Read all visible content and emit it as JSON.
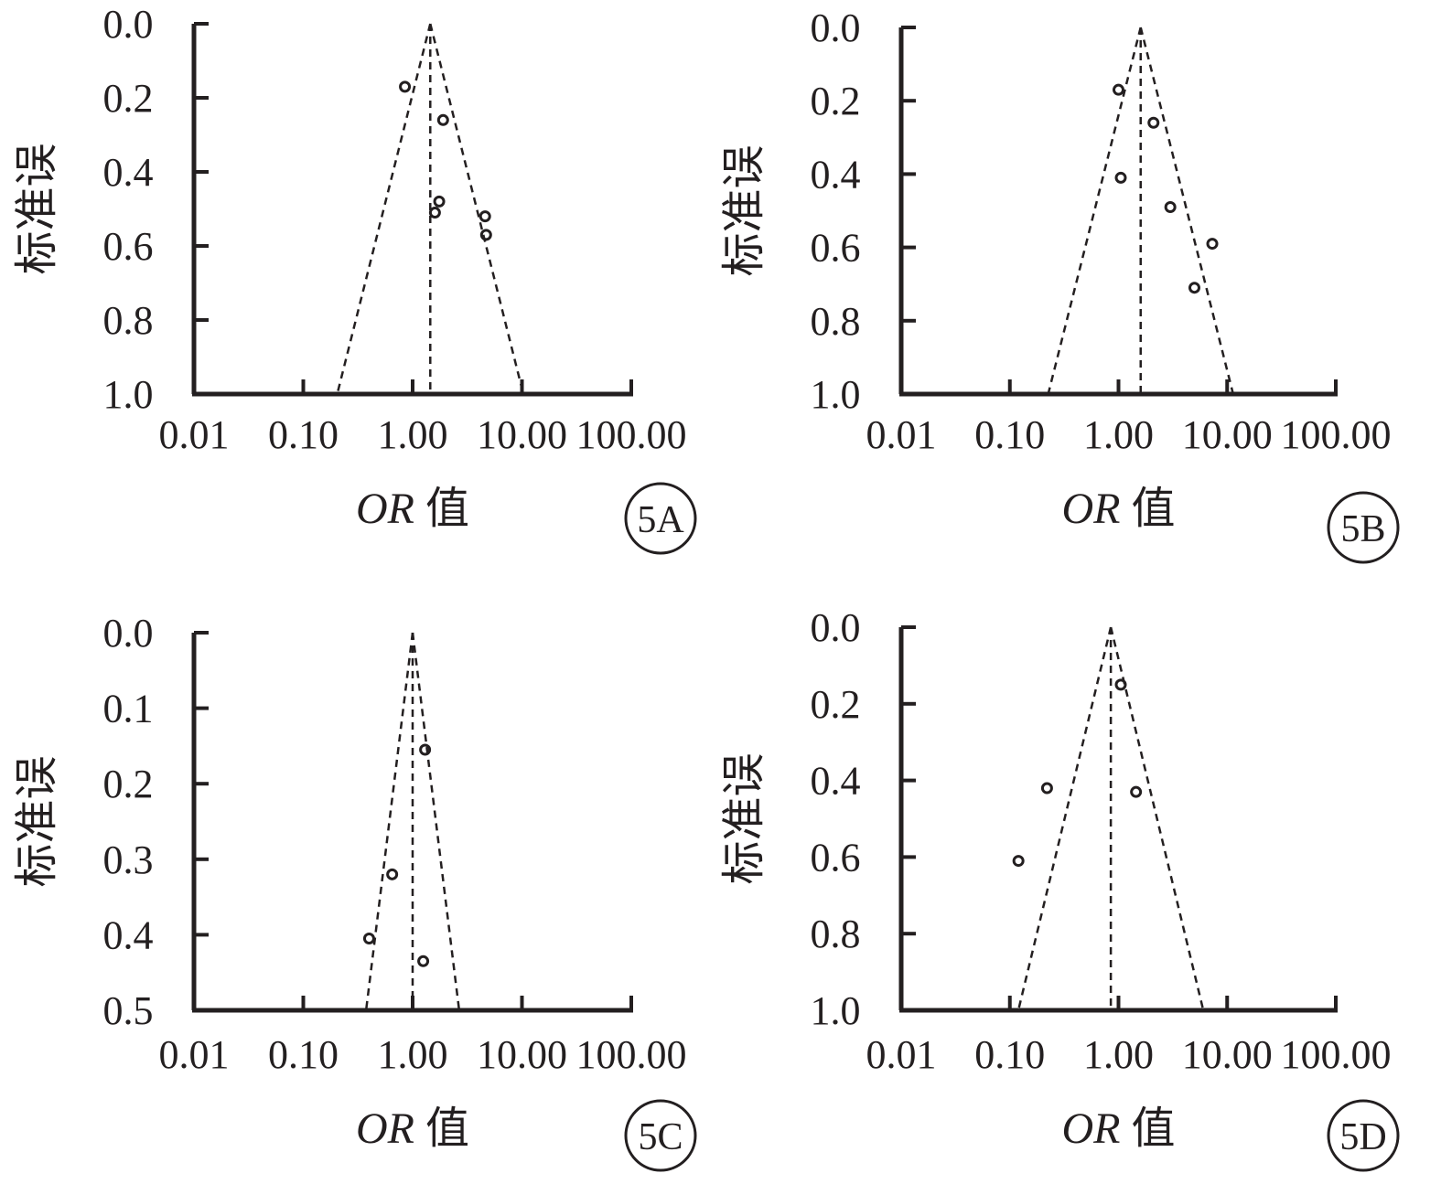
{
  "chart_data": [
    {
      "type": "scatter",
      "panel_label": "5A",
      "xlabel_italic": "OR",
      "xlabel_rest": " 值",
      "ylabel": "标准误",
      "x_scale": "log",
      "xlim": [
        0.01,
        100
      ],
      "x_ticks": [
        0.01,
        0.1,
        1,
        10,
        100
      ],
      "x_tick_labels": [
        "0.01",
        "0.10",
        "1.00",
        "10.00",
        "100.00"
      ],
      "ylim": [
        0,
        1.0
      ],
      "y_inverted": true,
      "y_ticks": [
        0.0,
        0.2,
        0.4,
        0.6,
        0.8,
        1.0
      ],
      "y_tick_labels": [
        "0.0",
        "0.2",
        "0.4",
        "0.6",
        "0.8",
        "1.0"
      ],
      "pooled_or": 1.45,
      "funnel_bottom_se": 1.0,
      "points": [
        {
          "x": 0.85,
          "y": 0.17
        },
        {
          "x": 1.9,
          "y": 0.26
        },
        {
          "x": 1.75,
          "y": 0.48
        },
        {
          "x": 1.6,
          "y": 0.51
        },
        {
          "x": 4.6,
          "y": 0.52
        },
        {
          "x": 4.7,
          "y": 0.57
        }
      ]
    },
    {
      "type": "scatter",
      "panel_label": "5B",
      "xlabel_italic": "OR",
      "xlabel_rest": " 值",
      "ylabel": "标准误",
      "x_scale": "log",
      "xlim": [
        0.01,
        100
      ],
      "x_ticks": [
        0.01,
        0.1,
        1,
        10,
        100
      ],
      "x_tick_labels": [
        "0.01",
        "0.10",
        "1.00",
        "10.00",
        "100.00"
      ],
      "ylim": [
        0,
        1.0
      ],
      "y_inverted": true,
      "y_ticks": [
        0.0,
        0.2,
        0.4,
        0.6,
        0.8,
        1.0
      ],
      "y_tick_labels": [
        "0.0",
        "0.2",
        "0.4",
        "0.6",
        "0.8",
        "1.0"
      ],
      "pooled_or": 1.6,
      "funnel_bottom_se": 1.0,
      "points": [
        {
          "x": 1.0,
          "y": 0.17
        },
        {
          "x": 2.1,
          "y": 0.26
        },
        {
          "x": 1.05,
          "y": 0.41
        },
        {
          "x": 3.0,
          "y": 0.49
        },
        {
          "x": 7.3,
          "y": 0.59
        },
        {
          "x": 5.0,
          "y": 0.71
        }
      ]
    },
    {
      "type": "scatter",
      "panel_label": "5C",
      "xlabel_italic": "OR",
      "xlabel_rest": " 值",
      "ylabel": "标准误",
      "x_scale": "log",
      "xlim": [
        0.01,
        100
      ],
      "x_ticks": [
        0.01,
        0.1,
        1,
        10,
        100
      ],
      "x_tick_labels": [
        "0.01",
        "0.10",
        "1.00",
        "10.00",
        "100.00"
      ],
      "ylim": [
        0,
        0.5
      ],
      "y_inverted": true,
      "y_ticks": [
        0.0,
        0.1,
        0.2,
        0.3,
        0.4,
        0.5
      ],
      "y_tick_labels": [
        "0.0",
        "0.1",
        "0.2",
        "0.3",
        "0.4",
        "0.5"
      ],
      "pooled_or": 1.0,
      "funnel_bottom_se": 0.5,
      "points": [
        {
          "x": 1.3,
          "y": 0.155
        },
        {
          "x": 0.65,
          "y": 0.32
        },
        {
          "x": 0.4,
          "y": 0.405
        },
        {
          "x": 1.25,
          "y": 0.435
        }
      ]
    },
    {
      "type": "scatter",
      "panel_label": "5D",
      "xlabel_italic": "OR",
      "xlabel_rest": " 值",
      "ylabel": "标准误",
      "x_scale": "log",
      "xlim": [
        0.01,
        100
      ],
      "x_ticks": [
        0.01,
        0.1,
        1,
        10,
        100
      ],
      "x_tick_labels": [
        "0.01",
        "0.10",
        "1.00",
        "10.00",
        "100.00"
      ],
      "ylim": [
        0,
        1.0
      ],
      "y_inverted": true,
      "y_ticks": [
        0.0,
        0.2,
        0.4,
        0.6,
        0.8,
        1.0
      ],
      "y_tick_labels": [
        "0.0",
        "0.2",
        "0.4",
        "0.6",
        "0.8",
        "1.0"
      ],
      "pooled_or": 0.85,
      "funnel_bottom_se": 1.0,
      "points": [
        {
          "x": 1.05,
          "y": 0.15
        },
        {
          "x": 0.22,
          "y": 0.42
        },
        {
          "x": 1.45,
          "y": 0.43
        },
        {
          "x": 0.12,
          "y": 0.61
        }
      ]
    }
  ],
  "colors": {
    "ink": "#231f20",
    "background": "#ffffff"
  }
}
